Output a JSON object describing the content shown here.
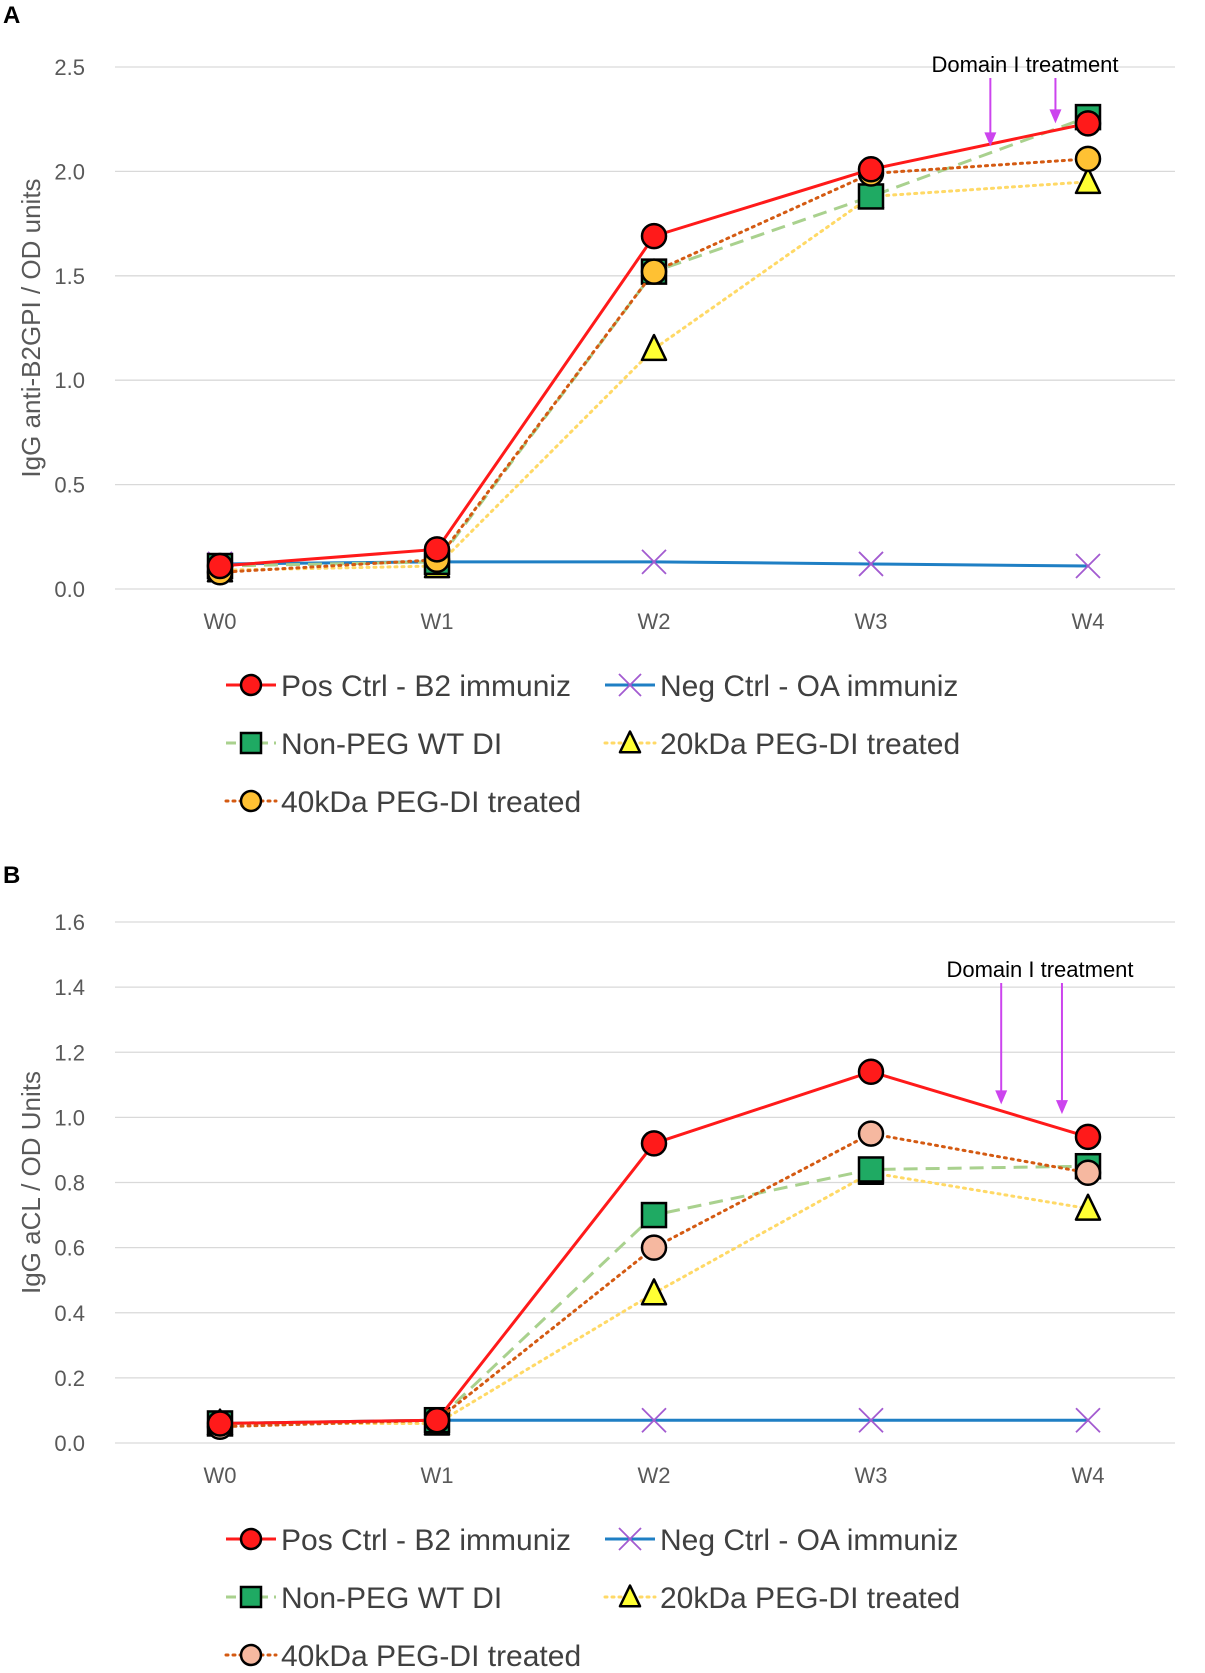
{
  "panels": {
    "a": {
      "label": "A"
    },
    "b": {
      "label": "B"
    }
  },
  "colors": {
    "pos": "#ff1a1a",
    "neg": "#1f7fc4",
    "neg_marker": "#a35bd0",
    "nonpeg_line": "#a9d18e",
    "nonpeg_marker": "#1faa63",
    "peg20_line": "#ffd966",
    "peg20_marker": "#ffff33",
    "peg40_line": "#d45a12",
    "peg40_marker_a": "#ffc133",
    "peg40_marker_b": "#f6b8a0",
    "arrow": "#cc44ee",
    "grid": "#d9d9d9",
    "tick_text": "#595959",
    "legend_text": "#404040"
  },
  "chart_data": [
    {
      "type": "line",
      "ylabel": "IgG anti-B2GPI / OD units",
      "xlabel": "",
      "categories": [
        "W0",
        "W1",
        "W2",
        "W3",
        "W4"
      ],
      "ylim": [
        0,
        2.5
      ],
      "yticks": [
        "0.0",
        "0.5",
        "1.0",
        "1.5",
        "2.0",
        "2.5"
      ],
      "grid": true,
      "legend_position": "bottom",
      "annotation": {
        "text": "Domain I treatment",
        "arrows_between": [
          [
            3.55,
            2.12
          ],
          [
            3.85,
            2.23
          ]
        ]
      },
      "series": [
        {
          "name": "Pos Ctrl - B2 immuniz",
          "values": [
            0.11,
            0.19,
            1.69,
            2.01,
            2.23
          ],
          "marker": "circle",
          "line": "solid"
        },
        {
          "name": "Neg Ctrl - OA immuniz",
          "values": [
            0.12,
            0.13,
            0.13,
            0.12,
            0.11
          ],
          "marker": "x",
          "line": "solid"
        },
        {
          "name": "Non-PEG WT DI",
          "values": [
            0.11,
            0.13,
            1.52,
            1.88,
            2.26
          ],
          "marker": "square",
          "line": "dashed"
        },
        {
          "name": "20kDa PEG-DI treated",
          "values": [
            0.09,
            0.11,
            1.15,
            1.88,
            1.95
          ],
          "marker": "triangle",
          "line": "dotted"
        },
        {
          "name": "40kDa PEG-DI treated",
          "values": [
            0.08,
            0.14,
            1.52,
            1.99,
            2.06
          ],
          "marker": "circle",
          "line": "dotted"
        }
      ]
    },
    {
      "type": "line",
      "ylabel": "IgG aCL / OD Units",
      "xlabel": "",
      "categories": [
        "W0",
        "W1",
        "W2",
        "W3",
        "W4"
      ],
      "ylim": [
        0,
        1.6
      ],
      "yticks": [
        "0.0",
        "0.2",
        "0.4",
        "0.6",
        "0.8",
        "1.0",
        "1.2",
        "1.4",
        "1.6"
      ],
      "grid": true,
      "legend_position": "bottom",
      "annotation": {
        "text": "Domain I treatment",
        "arrows_between": [
          [
            3.6,
            1.04
          ],
          [
            3.88,
            1.01
          ]
        ]
      },
      "series": [
        {
          "name": "Pos Ctrl - B2 immuniz",
          "values": [
            0.06,
            0.07,
            0.92,
            1.14,
            0.94
          ],
          "marker": "circle",
          "line": "solid"
        },
        {
          "name": "Neg Ctrl - OA immuniz",
          "values": [
            0.06,
            0.07,
            0.07,
            0.07,
            0.07
          ],
          "marker": "x",
          "line": "solid"
        },
        {
          "name": "Non-PEG WT DI",
          "values": [
            0.06,
            0.07,
            0.7,
            0.84,
            0.85
          ],
          "marker": "square",
          "line": "dashed"
        },
        {
          "name": "20kDa PEG-DI treated",
          "values": [
            0.06,
            0.06,
            0.46,
            0.83,
            0.72
          ],
          "marker": "triangle",
          "line": "dotted"
        },
        {
          "name": "40kDa PEG-DI treated",
          "values": [
            0.05,
            0.07,
            0.6,
            0.95,
            0.83
          ],
          "marker": "circle",
          "line": "dotted"
        }
      ]
    }
  ]
}
